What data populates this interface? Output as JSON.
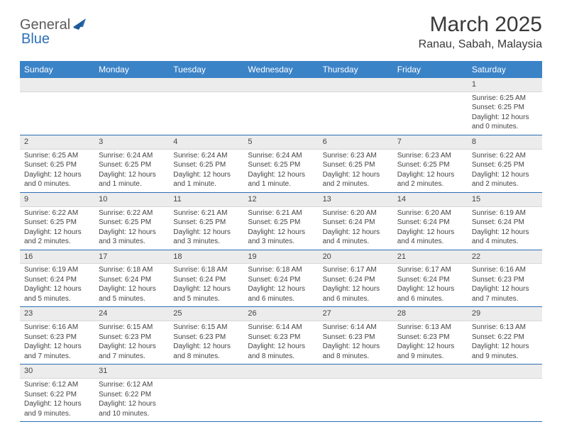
{
  "logo": {
    "text1": "General",
    "text2": "Blue"
  },
  "title": "March 2025",
  "location": "Ranau, Sabah, Malaysia",
  "colors": {
    "header_bg": "#3b83c7",
    "header_text": "#ffffff",
    "row_divider": "#2d6fb5",
    "daynum_bg": "#ececec",
    "text": "#444444",
    "logo_gray": "#5a5a5a",
    "logo_blue": "#2d6fb5"
  },
  "weekdays": [
    "Sunday",
    "Monday",
    "Tuesday",
    "Wednesday",
    "Thursday",
    "Friday",
    "Saturday"
  ],
  "weeks": [
    [
      null,
      null,
      null,
      null,
      null,
      null,
      {
        "n": "1",
        "sunrise": "Sunrise: 6:25 AM",
        "sunset": "Sunset: 6:25 PM",
        "daylight": "Daylight: 12 hours and 0 minutes."
      }
    ],
    [
      {
        "n": "2",
        "sunrise": "Sunrise: 6:25 AM",
        "sunset": "Sunset: 6:25 PM",
        "daylight": "Daylight: 12 hours and 0 minutes."
      },
      {
        "n": "3",
        "sunrise": "Sunrise: 6:24 AM",
        "sunset": "Sunset: 6:25 PM",
        "daylight": "Daylight: 12 hours and 1 minute."
      },
      {
        "n": "4",
        "sunrise": "Sunrise: 6:24 AM",
        "sunset": "Sunset: 6:25 PM",
        "daylight": "Daylight: 12 hours and 1 minute."
      },
      {
        "n": "5",
        "sunrise": "Sunrise: 6:24 AM",
        "sunset": "Sunset: 6:25 PM",
        "daylight": "Daylight: 12 hours and 1 minute."
      },
      {
        "n": "6",
        "sunrise": "Sunrise: 6:23 AM",
        "sunset": "Sunset: 6:25 PM",
        "daylight": "Daylight: 12 hours and 2 minutes."
      },
      {
        "n": "7",
        "sunrise": "Sunrise: 6:23 AM",
        "sunset": "Sunset: 6:25 PM",
        "daylight": "Daylight: 12 hours and 2 minutes."
      },
      {
        "n": "8",
        "sunrise": "Sunrise: 6:22 AM",
        "sunset": "Sunset: 6:25 PM",
        "daylight": "Daylight: 12 hours and 2 minutes."
      }
    ],
    [
      {
        "n": "9",
        "sunrise": "Sunrise: 6:22 AM",
        "sunset": "Sunset: 6:25 PM",
        "daylight": "Daylight: 12 hours and 2 minutes."
      },
      {
        "n": "10",
        "sunrise": "Sunrise: 6:22 AM",
        "sunset": "Sunset: 6:25 PM",
        "daylight": "Daylight: 12 hours and 3 minutes."
      },
      {
        "n": "11",
        "sunrise": "Sunrise: 6:21 AM",
        "sunset": "Sunset: 6:25 PM",
        "daylight": "Daylight: 12 hours and 3 minutes."
      },
      {
        "n": "12",
        "sunrise": "Sunrise: 6:21 AM",
        "sunset": "Sunset: 6:25 PM",
        "daylight": "Daylight: 12 hours and 3 minutes."
      },
      {
        "n": "13",
        "sunrise": "Sunrise: 6:20 AM",
        "sunset": "Sunset: 6:24 PM",
        "daylight": "Daylight: 12 hours and 4 minutes."
      },
      {
        "n": "14",
        "sunrise": "Sunrise: 6:20 AM",
        "sunset": "Sunset: 6:24 PM",
        "daylight": "Daylight: 12 hours and 4 minutes."
      },
      {
        "n": "15",
        "sunrise": "Sunrise: 6:19 AM",
        "sunset": "Sunset: 6:24 PM",
        "daylight": "Daylight: 12 hours and 4 minutes."
      }
    ],
    [
      {
        "n": "16",
        "sunrise": "Sunrise: 6:19 AM",
        "sunset": "Sunset: 6:24 PM",
        "daylight": "Daylight: 12 hours and 5 minutes."
      },
      {
        "n": "17",
        "sunrise": "Sunrise: 6:18 AM",
        "sunset": "Sunset: 6:24 PM",
        "daylight": "Daylight: 12 hours and 5 minutes."
      },
      {
        "n": "18",
        "sunrise": "Sunrise: 6:18 AM",
        "sunset": "Sunset: 6:24 PM",
        "daylight": "Daylight: 12 hours and 5 minutes."
      },
      {
        "n": "19",
        "sunrise": "Sunrise: 6:18 AM",
        "sunset": "Sunset: 6:24 PM",
        "daylight": "Daylight: 12 hours and 6 minutes."
      },
      {
        "n": "20",
        "sunrise": "Sunrise: 6:17 AM",
        "sunset": "Sunset: 6:24 PM",
        "daylight": "Daylight: 12 hours and 6 minutes."
      },
      {
        "n": "21",
        "sunrise": "Sunrise: 6:17 AM",
        "sunset": "Sunset: 6:24 PM",
        "daylight": "Daylight: 12 hours and 6 minutes."
      },
      {
        "n": "22",
        "sunrise": "Sunrise: 6:16 AM",
        "sunset": "Sunset: 6:23 PM",
        "daylight": "Daylight: 12 hours and 7 minutes."
      }
    ],
    [
      {
        "n": "23",
        "sunrise": "Sunrise: 6:16 AM",
        "sunset": "Sunset: 6:23 PM",
        "daylight": "Daylight: 12 hours and 7 minutes."
      },
      {
        "n": "24",
        "sunrise": "Sunrise: 6:15 AM",
        "sunset": "Sunset: 6:23 PM",
        "daylight": "Daylight: 12 hours and 7 minutes."
      },
      {
        "n": "25",
        "sunrise": "Sunrise: 6:15 AM",
        "sunset": "Sunset: 6:23 PM",
        "daylight": "Daylight: 12 hours and 8 minutes."
      },
      {
        "n": "26",
        "sunrise": "Sunrise: 6:14 AM",
        "sunset": "Sunset: 6:23 PM",
        "daylight": "Daylight: 12 hours and 8 minutes."
      },
      {
        "n": "27",
        "sunrise": "Sunrise: 6:14 AM",
        "sunset": "Sunset: 6:23 PM",
        "daylight": "Daylight: 12 hours and 8 minutes."
      },
      {
        "n": "28",
        "sunrise": "Sunrise: 6:13 AM",
        "sunset": "Sunset: 6:23 PM",
        "daylight": "Daylight: 12 hours and 9 minutes."
      },
      {
        "n": "29",
        "sunrise": "Sunrise: 6:13 AM",
        "sunset": "Sunset: 6:22 PM",
        "daylight": "Daylight: 12 hours and 9 minutes."
      }
    ],
    [
      {
        "n": "30",
        "sunrise": "Sunrise: 6:12 AM",
        "sunset": "Sunset: 6:22 PM",
        "daylight": "Daylight: 12 hours and 9 minutes."
      },
      {
        "n": "31",
        "sunrise": "Sunrise: 6:12 AM",
        "sunset": "Sunset: 6:22 PM",
        "daylight": "Daylight: 12 hours and 10 minutes."
      },
      null,
      null,
      null,
      null,
      null
    ]
  ]
}
